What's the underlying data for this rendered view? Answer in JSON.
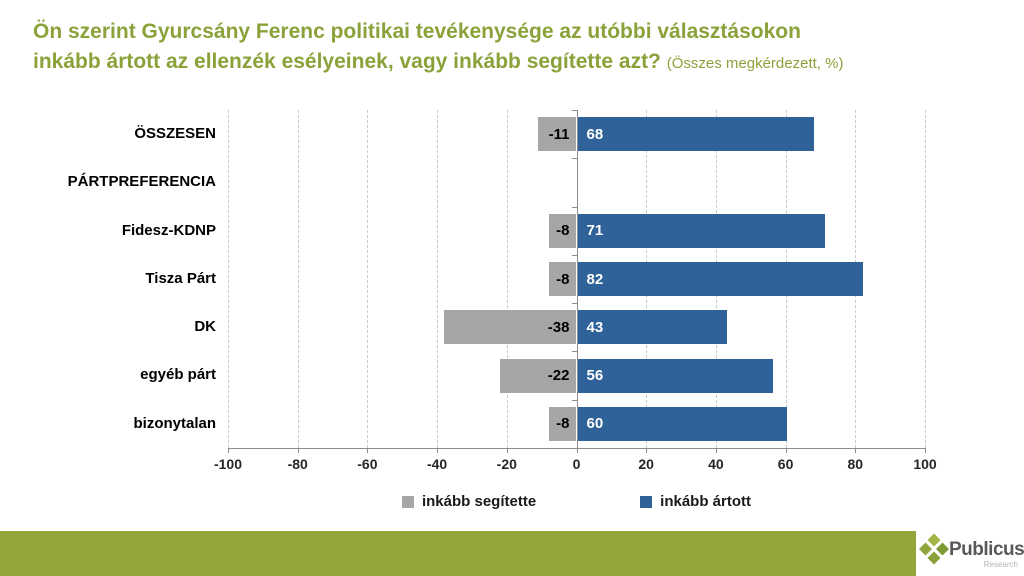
{
  "title": {
    "line1": "Ön szerint Gyurcsány Ferenc politikai tevékenysége az utóbbi választásokon",
    "line2": "inkább ártott az ellenzék esélyeinek, vagy inkább segítette azt?",
    "suffix": "(Összes megkérdezett, %)"
  },
  "chart_data": {
    "type": "bar",
    "orientation": "horizontal-diverging",
    "title": "Ön szerint Gyurcsány Ferenc politikai tevékenysége az utóbbi választásokon inkább ártott az ellenzék esélyeinek, vagy inkább segítette azt? (Összes megkérdezett, %)",
    "categories": [
      "ÖSSZESEN",
      "PÁRTPREFERENCIA",
      "Fidesz-KDNP",
      "Tisza Párt",
      "DK",
      "egyéb párt",
      "bizonytalan"
    ],
    "series": [
      {
        "name": "inkább segítette",
        "color": "#a6a6a6",
        "values": [
          -11,
          null,
          -8,
          -8,
          -38,
          -22,
          -8
        ]
      },
      {
        "name": "inkább ártott",
        "color": "#2f6298",
        "values": [
          68,
          null,
          71,
          82,
          43,
          56,
          60
        ]
      }
    ],
    "xlim": [
      -100,
      100
    ],
    "xticks": [
      -100,
      -80,
      -60,
      -40,
      -20,
      0,
      20,
      40,
      60,
      80,
      100
    ],
    "grid": "vertical-dashed",
    "legend_position": "bottom"
  },
  "footer": {
    "brand": "Publicus",
    "brand_sub": "Research"
  },
  "colors": {
    "title_green": "#8ba23a",
    "footer_green": "#96a43c",
    "bar_blue": "#2f6298",
    "bar_gray": "#a6a6a6"
  }
}
